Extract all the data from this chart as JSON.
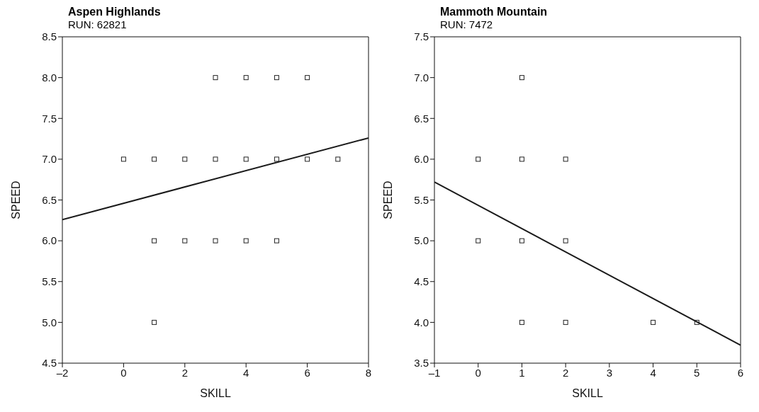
{
  "chart_data": [
    {
      "type": "scatter",
      "title": "Aspen Highlands",
      "subtitle": "RUN: 62821",
      "xlabel": "SKILL",
      "ylabel": "SPEED",
      "xlim": [
        -2,
        8
      ],
      "xticks": [
        {
          "value": -2,
          "label": "–2"
        },
        0,
        2,
        4,
        6,
        8
      ],
      "ylim": [
        4.5,
        8.5
      ],
      "yticks": [
        {
          "value": 4.5,
          "label": "4.5"
        },
        {
          "value": 5,
          "label": "5.0"
        },
        {
          "value": 5.5,
          "label": "5.5"
        },
        {
          "value": 6,
          "label": "6.0"
        },
        {
          "value": 6.5,
          "label": "6.5"
        },
        {
          "value": 7,
          "label": "7.0"
        },
        {
          "value": 7.5,
          "label": "7.5"
        },
        {
          "value": 8,
          "label": "8.0"
        },
        {
          "value": 8.5,
          "label": "8.5"
        }
      ],
      "grid": false,
      "series": [
        {
          "marker": "square",
          "color": "#222222",
          "x": [
            3,
            4,
            5,
            6,
            0,
            1,
            2,
            3,
            4,
            5,
            6,
            7,
            1,
            2,
            3,
            4,
            5,
            1
          ],
          "values": [
            8,
            8,
            8,
            8,
            7,
            7,
            7,
            7,
            7,
            7,
            7,
            7,
            6,
            6,
            6,
            6,
            6,
            5
          ]
        },
        {
          "type": "line",
          "marker": "none",
          "color": "#1a1a1a",
          "x": [
            -2,
            8
          ],
          "values": [
            6.26,
            7.26
          ]
        }
      ]
    },
    {
      "type": "scatter",
      "title": "Mammoth Mountain",
      "subtitle": "RUN: 7472",
      "xlabel": "SKILL",
      "ylabel": "SPEED",
      "xlim": [
        -1,
        6
      ],
      "xticks": [
        {
          "value": -1,
          "label": "–1"
        },
        0,
        1,
        2,
        3,
        4,
        5,
        6
      ],
      "ylim": [
        3.5,
        7.5
      ],
      "yticks": [
        {
          "value": 3.5,
          "label": "3.5"
        },
        {
          "value": 4,
          "label": "4.0"
        },
        {
          "value": 4.5,
          "label": "4.5"
        },
        {
          "value": 5,
          "label": "5.0"
        },
        {
          "value": 5.5,
          "label": "5.5"
        },
        {
          "value": 6,
          "label": "6.0"
        },
        {
          "value": 6.5,
          "label": "6.5"
        },
        {
          "value": 7,
          "label": "7.0"
        },
        {
          "value": 7.5,
          "label": "7.5"
        }
      ],
      "grid": false,
      "series": [
        {
          "marker": "square",
          "color": "#222222",
          "x": [
            1,
            0,
            1,
            2,
            0,
            1,
            2,
            1,
            2,
            4,
            5
          ],
          "values": [
            7,
            6,
            6,
            6,
            5,
            5,
            5,
            4,
            4,
            4,
            4
          ]
        },
        {
          "type": "line",
          "marker": "none",
          "color": "#1a1a1a",
          "x": [
            -1,
            6
          ],
          "values": [
            5.72,
            3.72
          ]
        }
      ]
    }
  ]
}
